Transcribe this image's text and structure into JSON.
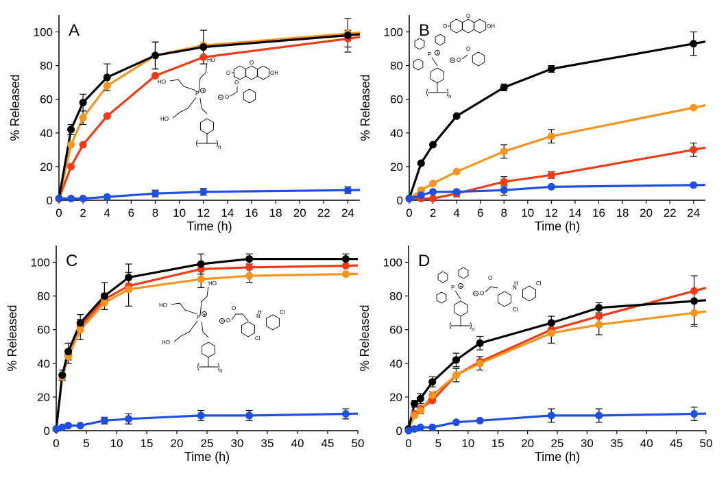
{
  "colors": {
    "black": "#000000",
    "orange": "#f7941d",
    "red": "#f23b16",
    "blue": "#1f4fe0"
  },
  "chart_data": [
    {
      "panel_label": "A",
      "type": "line",
      "xlabel": "Time (h)",
      "ylabel": "% Released",
      "xlim": [
        0,
        25
      ],
      "ylim": [
        0,
        110
      ],
      "xticks": [
        0,
        2,
        4,
        6,
        8,
        10,
        12,
        14,
        16,
        18,
        20,
        22,
        24
      ],
      "yticks": [
        0,
        20,
        40,
        60,
        80,
        100
      ],
      "series": [
        {
          "color": "#f23b16",
          "x": [
            0,
            1,
            2,
            4,
            8,
            12,
            24
          ],
          "y": [
            1,
            20,
            33,
            50,
            74,
            85,
            96
          ],
          "err": [
            0,
            0,
            0,
            0,
            0,
            0,
            5
          ]
        },
        {
          "color": "#f7941d",
          "x": [
            0,
            1,
            2,
            4,
            8,
            12,
            24
          ],
          "y": [
            1,
            33,
            49,
            68,
            86,
            92,
            99
          ],
          "err": [
            0,
            0,
            4,
            0,
            8,
            0,
            0
          ]
        },
        {
          "color": "#000000",
          "x": [
            0,
            1,
            2,
            4,
            8,
            12,
            24
          ],
          "y": [
            1,
            42,
            58,
            73,
            86,
            91,
            98
          ],
          "err": [
            0,
            3,
            5,
            8,
            8,
            10,
            10
          ]
        },
        {
          "color": "#1f4fe0",
          "x": [
            0,
            1,
            2,
            4,
            8,
            12,
            24
          ],
          "y": [
            1,
            1,
            1,
            2,
            4,
            5,
            6
          ],
          "err": [
            0,
            0,
            0,
            0,
            2,
            2,
            2
          ]
        }
      ],
      "structure": "phosphonium-fluorescein"
    },
    {
      "panel_label": "B",
      "type": "line",
      "xlabel": "Time (h)",
      "ylabel": "% Released",
      "xlim": [
        0,
        25
      ],
      "ylim": [
        0,
        110
      ],
      "xticks": [
        0,
        2,
        4,
        6,
        8,
        10,
        12,
        14,
        16,
        18,
        20,
        22,
        24
      ],
      "yticks": [
        0,
        20,
        40,
        60,
        80,
        100
      ],
      "series": [
        {
          "color": "#f23b16",
          "x": [
            0,
            1,
            2,
            4,
            8,
            12,
            24
          ],
          "y": [
            1,
            1,
            1,
            4,
            11,
            15,
            30
          ],
          "err": [
            0,
            0,
            0,
            2,
            3,
            2,
            4
          ]
        },
        {
          "color": "#f7941d",
          "x": [
            0,
            1,
            2,
            4,
            8,
            12,
            24
          ],
          "y": [
            1,
            6,
            10,
            17,
            29,
            38,
            55
          ],
          "err": [
            0,
            0,
            0,
            0,
            4,
            4,
            0
          ]
        },
        {
          "color": "#000000",
          "x": [
            0,
            1,
            2,
            4,
            8,
            12,
            24
          ],
          "y": [
            1,
            22,
            33,
            50,
            67,
            78,
            93
          ],
          "err": [
            0,
            0,
            0,
            0,
            2,
            2,
            7
          ]
        },
        {
          "color": "#1f4fe0",
          "x": [
            0,
            1,
            2,
            4,
            8,
            12,
            24
          ],
          "y": [
            1,
            3,
            5,
            5,
            6,
            8,
            9
          ],
          "err": [
            0,
            0,
            0,
            0,
            3,
            0,
            0
          ]
        }
      ],
      "structure": "triphenylphosphonium-fluorescein"
    },
    {
      "panel_label": "C",
      "type": "line",
      "xlabel": "Time (h)",
      "ylabel": "% Released",
      "xlim": [
        0,
        50
      ],
      "ylim": [
        0,
        110
      ],
      "xticks": [
        0,
        5,
        10,
        15,
        20,
        25,
        30,
        35,
        40,
        45,
        50
      ],
      "yticks": [
        0,
        20,
        40,
        60,
        80,
        100
      ],
      "series": [
        {
          "color": "#f23b16",
          "x": [
            0,
            1,
            2,
            4,
            8,
            12,
            24,
            32,
            48
          ],
          "y": [
            1,
            33,
            45,
            62,
            78,
            86,
            96,
            97,
            98
          ],
          "err": [
            0,
            0,
            0,
            0,
            0,
            0,
            0,
            0,
            0
          ]
        },
        {
          "color": "#f7941d",
          "x": [
            0,
            1,
            2,
            4,
            8,
            12,
            24,
            32,
            48
          ],
          "y": [
            1,
            32,
            44,
            60,
            76,
            84,
            90,
            92,
            93
          ],
          "err": [
            0,
            0,
            4,
            6,
            0,
            10,
            5,
            4,
            0
          ]
        },
        {
          "color": "#000000",
          "x": [
            0,
            1,
            2,
            4,
            8,
            12,
            24,
            32,
            48
          ],
          "y": [
            1,
            33,
            47,
            64,
            80,
            91,
            99,
            102,
            102
          ],
          "err": [
            0,
            3,
            5,
            5,
            8,
            8,
            6,
            3,
            3
          ]
        },
        {
          "color": "#1f4fe0",
          "x": [
            0,
            1,
            2,
            4,
            8,
            12,
            24,
            32,
            48
          ],
          "y": [
            1,
            2,
            3,
            3,
            6,
            7,
            9,
            9,
            10
          ],
          "err": [
            0,
            0,
            0,
            0,
            2,
            3,
            3,
            3,
            3
          ]
        }
      ],
      "structure": "phosphonium-diclofenac"
    },
    {
      "panel_label": "D",
      "type": "line",
      "xlabel": "Time (h)",
      "ylabel": "% Released",
      "xlim": [
        0,
        50
      ],
      "ylim": [
        0,
        110
      ],
      "xticks": [
        0,
        5,
        10,
        15,
        20,
        25,
        30,
        35,
        40,
        45,
        50
      ],
      "yticks": [
        0,
        20,
        40,
        60,
        80,
        100
      ],
      "series": [
        {
          "color": "#f23b16",
          "x": [
            0,
            1,
            2,
            4,
            8,
            12,
            24,
            32,
            48
          ],
          "y": [
            1,
            10,
            13,
            18,
            33,
            41,
            60,
            68,
            83
          ],
          "err": [
            0,
            0,
            0,
            0,
            0,
            0,
            0,
            0,
            0
          ]
        },
        {
          "color": "#f7941d",
          "x": [
            0,
            1,
            2,
            4,
            8,
            12,
            24,
            32,
            48
          ],
          "y": [
            1,
            9,
            12,
            21,
            33,
            40,
            58,
            63,
            70
          ],
          "err": [
            0,
            0,
            2,
            2,
            4,
            4,
            6,
            6,
            7
          ]
        },
        {
          "color": "#000000",
          "x": [
            0,
            1,
            2,
            4,
            8,
            12,
            24,
            32,
            48
          ],
          "y": [
            1,
            16,
            19,
            29,
            42,
            52,
            64,
            73,
            77
          ],
          "err": [
            0,
            2,
            3,
            3,
            4,
            4,
            4,
            3,
            15
          ]
        },
        {
          "color": "#1f4fe0",
          "x": [
            0,
            1,
            2,
            4,
            8,
            12,
            24,
            32,
            48
          ],
          "y": [
            0,
            1,
            2,
            2,
            5,
            6,
            9,
            9,
            10
          ],
          "err": [
            0,
            0,
            0,
            0,
            0,
            0,
            4,
            4,
            4
          ]
        }
      ],
      "structure": "triphenylphosphonium-diclofenac"
    }
  ]
}
